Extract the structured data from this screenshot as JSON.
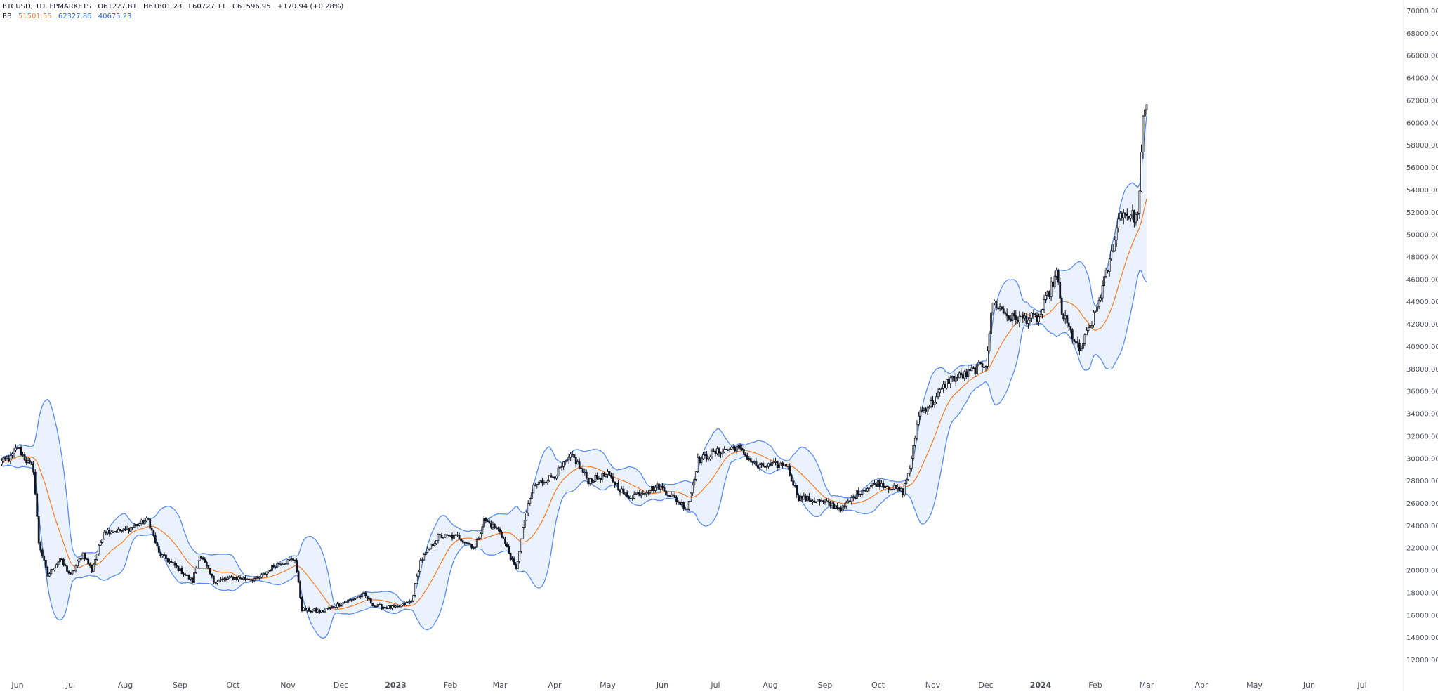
{
  "header": {
    "symbol": "BTCUSD, 1D, FPMARKETS",
    "open": "O61227.81",
    "high": "H61801.23",
    "low": "L60727.11",
    "close": "C61596.95",
    "change": "+170.94 (+0.28%)"
  },
  "indicator": {
    "name": "BB",
    "basis": "51501.55",
    "upper": "62327.86",
    "lower": "40675.23"
  },
  "colors": {
    "candle": "#131722",
    "basis": "#f57c2e",
    "bands": "#5b8def",
    "band_fill": "#eaf2fd",
    "axis_text": "#4a4e59",
    "basis_text": "#f57c2e",
    "band_text": "#2962ff"
  },
  "chart_data": {
    "type": "candlestick",
    "title": "",
    "ylim": [
      11000,
      70000
    ],
    "y_ticks": [
      "12000.00",
      "14000.00",
      "16000.00",
      "18000.00",
      "20000.00",
      "22000.00",
      "24000.00",
      "26000.00",
      "28000.00",
      "30000.00",
      "32000.00",
      "34000.00",
      "36000.00",
      "38000.00",
      "40000.00",
      "42000.00",
      "44000.00",
      "46000.00",
      "48000.00",
      "50000.00",
      "52000.00",
      "54000.00",
      "56000.00",
      "58000.00",
      "60000.00",
      "62000.00",
      "64000.00",
      "66000.00",
      "68000.00",
      "70000.00"
    ],
    "x_ticks": [
      {
        "label": "Jun",
        "date": "2022-06-01"
      },
      {
        "label": "Jul",
        "date": "2022-07-01"
      },
      {
        "label": "Aug",
        "date": "2022-08-01"
      },
      {
        "label": "Sep",
        "date": "2022-09-01"
      },
      {
        "label": "Oct",
        "date": "2022-10-01"
      },
      {
        "label": "Nov",
        "date": "2022-11-01"
      },
      {
        "label": "Dec",
        "date": "2022-12-01"
      },
      {
        "label": "2023",
        "date": "2023-01-01",
        "bold": true
      },
      {
        "label": "Feb",
        "date": "2023-02-01"
      },
      {
        "label": "Mar",
        "date": "2023-03-01"
      },
      {
        "label": "Apr",
        "date": "2023-04-01"
      },
      {
        "label": "May",
        "date": "2023-05-01"
      },
      {
        "label": "Jun",
        "date": "2023-06-01"
      },
      {
        "label": "Jul",
        "date": "2023-07-01"
      },
      {
        "label": "Aug",
        "date": "2023-08-01"
      },
      {
        "label": "Sep",
        "date": "2023-09-01"
      },
      {
        "label": "Oct",
        "date": "2023-10-01"
      },
      {
        "label": "Nov",
        "date": "2023-11-01"
      },
      {
        "label": "Dec",
        "date": "2023-12-01"
      },
      {
        "label": "2024",
        "date": "2024-01-01",
        "bold": true
      },
      {
        "label": "Feb",
        "date": "2024-02-01"
      },
      {
        "label": "Mar",
        "date": "2024-03-01"
      },
      {
        "label": "Apr",
        "date": "2024-04-01"
      },
      {
        "label": "May",
        "date": "2024-05-01"
      },
      {
        "label": "Jun",
        "date": "2024-06-01"
      },
      {
        "label": "Jul",
        "date": "2024-07-01"
      }
    ],
    "price_anchors": [
      [
        "2022-05-21",
        29500
      ],
      [
        "2022-05-28",
        30000
      ],
      [
        "2022-06-01",
        31000
      ],
      [
        "2022-06-05",
        30000
      ],
      [
        "2022-06-10",
        29000
      ],
      [
        "2022-06-13",
        22500
      ],
      [
        "2022-06-18",
        19500
      ],
      [
        "2022-06-25",
        21000
      ],
      [
        "2022-07-01",
        19500
      ],
      [
        "2022-07-08",
        21500
      ],
      [
        "2022-07-13",
        20000
      ],
      [
        "2022-07-20",
        23500
      ],
      [
        "2022-07-31",
        23500
      ],
      [
        "2022-08-14",
        24500
      ],
      [
        "2022-08-20",
        21500
      ],
      [
        "2022-09-01",
        20000
      ],
      [
        "2022-09-08",
        19000
      ],
      [
        "2022-09-12",
        21500
      ],
      [
        "2022-09-20",
        19000
      ],
      [
        "2022-10-01",
        19300
      ],
      [
        "2022-10-15",
        19200
      ],
      [
        "2022-10-25",
        20500
      ],
      [
        "2022-11-05",
        21000
      ],
      [
        "2022-11-09",
        16500
      ],
      [
        "2022-11-20",
        16300
      ],
      [
        "2022-12-01",
        17000
      ],
      [
        "2022-12-14",
        17800
      ],
      [
        "2022-12-20",
        16800
      ],
      [
        "2023-01-01",
        16600
      ],
      [
        "2023-01-10",
        17200
      ],
      [
        "2023-01-15",
        20800
      ],
      [
        "2023-01-25",
        23000
      ],
      [
        "2023-02-05",
        23000
      ],
      [
        "2023-02-15",
        22000
      ],
      [
        "2023-02-20",
        24500
      ],
      [
        "2023-03-01",
        23500
      ],
      [
        "2023-03-10",
        20000
      ],
      [
        "2023-03-15",
        24500
      ],
      [
        "2023-03-20",
        27500
      ],
      [
        "2023-04-01",
        28500
      ],
      [
        "2023-04-11",
        30200
      ],
      [
        "2023-04-20",
        28000
      ],
      [
        "2023-05-01",
        28500
      ],
      [
        "2023-05-12",
        26500
      ],
      [
        "2023-05-30",
        27500
      ],
      [
        "2023-06-15",
        25500
      ],
      [
        "2023-06-21",
        29800
      ],
      [
        "2023-07-01",
        30500
      ],
      [
        "2023-07-13",
        31000
      ],
      [
        "2023-07-25",
        29200
      ],
      [
        "2023-08-10",
        29500
      ],
      [
        "2023-08-17",
        26500
      ],
      [
        "2023-09-01",
        26000
      ],
      [
        "2023-09-11",
        25500
      ],
      [
        "2023-09-20",
        27000
      ],
      [
        "2023-10-01",
        27800
      ],
      [
        "2023-10-15",
        27000
      ],
      [
        "2023-10-20",
        29800
      ],
      [
        "2023-10-24",
        34000
      ],
      [
        "2023-11-01",
        35000
      ],
      [
        "2023-11-10",
        37000
      ],
      [
        "2023-11-20",
        37500
      ],
      [
        "2023-12-01",
        38500
      ],
      [
        "2023-12-05",
        44000
      ],
      [
        "2023-12-15",
        42500
      ],
      [
        "2023-12-31",
        42500
      ],
      [
        "2024-01-10",
        46500
      ],
      [
        "2024-01-13",
        43000
      ],
      [
        "2024-01-23",
        39500
      ],
      [
        "2024-02-01",
        43000
      ],
      [
        "2024-02-09",
        47500
      ],
      [
        "2024-02-15",
        52000
      ],
      [
        "2024-02-25",
        51500
      ],
      [
        "2024-02-28",
        60000
      ],
      [
        "2024-03-01",
        61597
      ]
    ]
  }
}
